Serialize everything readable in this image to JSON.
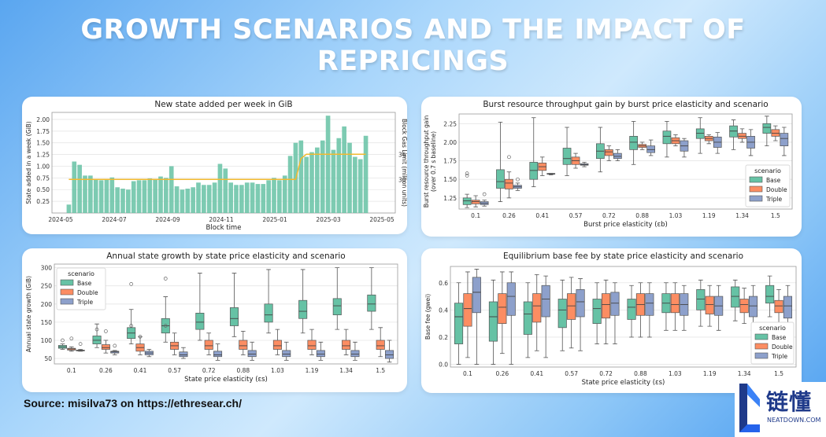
{
  "page_title": "GROWTH SCENARIOS AND THE IMPACT OF REPRICINGS",
  "source": "Source: misilva73 on https://ethresear.ch/",
  "logo": {
    "cn": "链懂",
    "en": "NEATDOWN.COM"
  },
  "colors": {
    "base": "#66c2a5",
    "double": "#fc8d62",
    "triple": "#8da0cb",
    "gaslimit": "#f2b92e"
  },
  "chart_data": [
    {
      "type": "bar",
      "title": "New state added per week in GiB",
      "xlabel": "Block time",
      "ylabel": "State added in a week (GiB)",
      "ylabel2": "Block Gas Limit (million units)",
      "ylim": [
        0,
        2.15
      ],
      "yticks": [
        "0.25",
        "0.50",
        "0.75",
        "1.00",
        "1.25",
        "1.50",
        "1.75",
        "2.00"
      ],
      "ytick_values": [
        0.25,
        0.5,
        0.75,
        1.0,
        1.25,
        1.5,
        1.75,
        2.0
      ],
      "y2ticks": [
        "30",
        "36"
      ],
      "y2tick_values": [
        30,
        36
      ],
      "y2lim": [
        22,
        46
      ],
      "xticks": [
        "2024-05",
        "2024-07",
        "2024-09",
        "2024-11",
        "2025-01",
        "2025-03",
        "2025-05"
      ],
      "values": [
        0.18,
        1.1,
        1.03,
        0.8,
        0.8,
        0.72,
        0.7,
        0.72,
        0.76,
        0.55,
        0.52,
        0.5,
        0.68,
        0.7,
        0.7,
        0.74,
        0.72,
        0.78,
        0.75,
        1.0,
        0.57,
        0.5,
        0.52,
        0.55,
        0.65,
        0.6,
        0.6,
        0.65,
        1.05,
        0.95,
        0.65,
        0.6,
        0.6,
        0.65,
        0.65,
        0.62,
        0.62,
        0.7,
        0.75,
        0.7,
        0.8,
        1.22,
        1.5,
        1.55,
        1.2,
        1.3,
        1.4,
        1.55,
        2.08,
        1.35,
        1.6,
        1.85,
        1.5,
        1.2,
        1.15,
        1.65
      ],
      "gas_limit": [
        30,
        30,
        30,
        30,
        30,
        30,
        30,
        30,
        30,
        30,
        30,
        30,
        30,
        30,
        30,
        30,
        30,
        30,
        30,
        30,
        30,
        30,
        30,
        30,
        30,
        30,
        30,
        30,
        30,
        30,
        30,
        30,
        30,
        30,
        30,
        30,
        30,
        30,
        30,
        30,
        30,
        30,
        30,
        35,
        36,
        36,
        36,
        36,
        36,
        36,
        36,
        36,
        36,
        36,
        36,
        36
      ]
    },
    {
      "type": "boxplot",
      "title": "Burst resource throughput gain by burst price elasticity and scenario",
      "xlabel": "Burst price elasticity (εb)",
      "ylabel": "Burst resource throughput gain",
      "ylabel_line2": "(over 0.7 s baseline)",
      "ylim": [
        1.1,
        2.38
      ],
      "yticks": [
        "1.25",
        "1.50",
        "1.75",
        "2.00",
        "2.25"
      ],
      "ytick_values": [
        1.25,
        1.5,
        1.75,
        2.0,
        2.25
      ],
      "categories": [
        "0.1",
        "0.26",
        "0.41",
        "0.57",
        "0.72",
        "0.88",
        "1.03",
        "1.19",
        "1.34",
        "1.5"
      ],
      "legend_title": "scenario",
      "legend": [
        "Base",
        "Double",
        "Triple"
      ],
      "series": [
        {
          "name": "Base",
          "boxes": [
            [
              1.12,
              1.16,
              1.21,
              1.25,
              1.3
            ],
            [
              1.2,
              1.38,
              1.47,
              1.63,
              2.27
            ],
            [
              1.4,
              1.5,
              1.62,
              1.73,
              2.33
            ],
            [
              1.55,
              1.7,
              1.78,
              1.92,
              2.2
            ],
            [
              1.6,
              1.78,
              1.88,
              1.98,
              2.2
            ],
            [
              1.7,
              1.9,
              2.0,
              2.08,
              2.28
            ],
            [
              1.8,
              1.98,
              2.08,
              2.15,
              2.28
            ],
            [
              1.85,
              2.05,
              2.12,
              2.18,
              2.33
            ],
            [
              1.9,
              2.07,
              2.15,
              2.22,
              2.3
            ],
            [
              1.95,
              2.12,
              2.2,
              2.25,
              2.35
            ]
          ],
          "outliers": [
            [
              1.55,
              1.58
            ],
            [],
            [],
            [],
            [],
            [],
            [],
            [],
            [],
            []
          ]
        },
        {
          "name": "Double",
          "boxes": [
            [
              1.13,
              1.17,
              1.2,
              1.22,
              1.28
            ],
            [
              1.25,
              1.37,
              1.45,
              1.5,
              1.6
            ],
            [
              1.55,
              1.62,
              1.67,
              1.72,
              1.8
            ],
            [
              1.65,
              1.7,
              1.75,
              1.8,
              1.85
            ],
            [
              1.75,
              1.82,
              1.87,
              1.9,
              1.95
            ],
            [
              1.9,
              1.93,
              1.95,
              1.97,
              2.0
            ],
            [
              1.95,
              1.98,
              2.02,
              2.06,
              2.1
            ],
            [
              1.98,
              2.02,
              2.05,
              2.08,
              2.1
            ],
            [
              2.0,
              2.05,
              2.08,
              2.12,
              2.18
            ],
            [
              2.02,
              2.08,
              2.12,
              2.17,
              2.22
            ]
          ],
          "outliers": [
            [],
            [
              1.8
            ],
            [],
            [],
            [],
            [],
            [],
            [],
            [],
            []
          ]
        },
        {
          "name": "Triple",
          "boxes": [
            [
              1.14,
              1.16,
              1.18,
              1.2,
              1.22
            ],
            [
              1.35,
              1.38,
              1.4,
              1.42,
              1.45
            ],
            [
              1.56,
              1.57,
              1.57,
              1.58,
              1.58
            ],
            [
              1.67,
              1.69,
              1.7,
              1.71,
              1.73
            ],
            [
              1.75,
              1.78,
              1.81,
              1.85,
              1.9
            ],
            [
              1.82,
              1.86,
              1.9,
              1.95,
              2.03
            ],
            [
              1.8,
              1.88,
              1.95,
              2.02,
              2.05
            ],
            [
              1.85,
              1.93,
              2.0,
              2.07,
              2.13
            ],
            [
              1.82,
              1.92,
              2.0,
              2.08,
              2.17
            ],
            [
              1.82,
              1.95,
              2.05,
              2.12,
              2.2
            ]
          ],
          "outliers": [
            [
              1.3
            ],
            [
              1.5
            ],
            [],
            [],
            [],
            [],
            [],
            [],
            [],
            []
          ]
        }
      ]
    },
    {
      "type": "boxplot",
      "title": "Annual state growth by state price elasticity and scenario",
      "xlabel": "State price elasticity (εs)",
      "ylabel": "Annual state growth (GiB)",
      "ylim": [
        35,
        310
      ],
      "yticks": [
        "50",
        "100",
        "150",
        "200",
        "250",
        "300"
      ],
      "ytick_values": [
        50,
        100,
        150,
        200,
        250,
        300
      ],
      "categories": [
        "0.1",
        "0.26",
        "0.41",
        "0.57",
        "0.72",
        "0.88",
        "1.03",
        "1.19",
        "1.34",
        "1.5"
      ],
      "legend_title": "scenario",
      "legend": [
        "Base",
        "Double",
        "Triple"
      ],
      "series": [
        {
          "name": "Base",
          "boxes": [
            [
              75,
              78,
              82,
              86,
              90
            ],
            [
              80,
              90,
              100,
              112,
              145
            ],
            [
              90,
              105,
              120,
              135,
              185
            ],
            [
              95,
              120,
              140,
              160,
              220
            ],
            [
              100,
              130,
              150,
              175,
              285
            ],
            [
              110,
              140,
              160,
              190,
              285
            ],
            [
              120,
              150,
              170,
              200,
              295
            ],
            [
              120,
              160,
              180,
              210,
              295
            ],
            [
              130,
              170,
              195,
              215,
              300
            ],
            [
              130,
              180,
              200,
              225,
              300
            ]
          ],
          "outliers": [
            [
              100
            ],
            [
              130
            ],
            [
              255,
              140
            ],
            [
              270,
              140
            ],
            [],
            [],
            [],
            [],
            [],
            []
          ]
        },
        {
          "name": "Double",
          "boxes": [
            [
              70,
              73,
              76,
              78,
              82
            ],
            [
              65,
              75,
              80,
              88,
              100
            ],
            [
              60,
              70,
              80,
              90,
              110
            ],
            [
              60,
              75,
              85,
              95,
              120
            ],
            [
              60,
              75,
              85,
              100,
              120
            ],
            [
              60,
              75,
              85,
              100,
              125
            ],
            [
              60,
              75,
              85,
              100,
              130
            ],
            [
              60,
              75,
              85,
              100,
              130
            ],
            [
              60,
              75,
              85,
              100,
              130
            ],
            [
              55,
              75,
              85,
              100,
              135
            ]
          ],
          "outliers": [
            [
              105
            ],
            [
              125
            ],
            [
              110
            ],
            [],
            [],
            [],
            [],
            [],
            [],
            []
          ]
        },
        {
          "name": "Triple",
          "boxes": [
            [
              70,
              71,
              72,
              73,
              75
            ],
            [
              60,
              65,
              68,
              70,
              72
            ],
            [
              55,
              60,
              65,
              70,
              75
            ],
            [
              50,
              55,
              60,
              68,
              80
            ],
            [
              45,
              55,
              60,
              70,
              90
            ],
            [
              45,
              55,
              62,
              72,
              95
            ],
            [
              45,
              55,
              62,
              72,
              95
            ],
            [
              45,
              55,
              62,
              72,
              95
            ],
            [
              45,
              55,
              62,
              72,
              95
            ],
            [
              40,
              50,
              60,
              72,
              100
            ]
          ],
          "outliers": [
            [
              90
            ],
            [
              85
            ],
            [],
            [],
            [],
            [],
            [],
            [],
            [],
            []
          ]
        }
      ]
    },
    {
      "type": "boxplot",
      "title": "Equilibrium base fee by state price elasticity and scenario",
      "xlabel": "State price elasticity (εs)",
      "ylabel": "Base fee (gwei)",
      "ylim": [
        -0.02,
        0.72
      ],
      "yticks": [
        "0.0",
        "0.2",
        "0.4",
        "0.6"
      ],
      "ytick_values": [
        0.0,
        0.2,
        0.4,
        0.6
      ],
      "categories": [
        "0.1",
        "0.26",
        "0.41",
        "0.57",
        "0.72",
        "0.88",
        "1.03",
        "1.19",
        "1.34",
        "1.5"
      ],
      "legend_title": "scenario",
      "legend": [
        "Base",
        "Double",
        "Triple"
      ],
      "series": [
        {
          "name": "Base",
          "boxes": [
            [
              0.0,
              0.15,
              0.35,
              0.45,
              0.6
            ],
            [
              0.0,
              0.17,
              0.35,
              0.46,
              0.62
            ],
            [
              0.05,
              0.22,
              0.37,
              0.46,
              0.6
            ],
            [
              0.1,
              0.27,
              0.4,
              0.48,
              0.62
            ],
            [
              0.15,
              0.3,
              0.41,
              0.48,
              0.6
            ],
            [
              0.2,
              0.33,
              0.42,
              0.48,
              0.58
            ],
            [
              0.25,
              0.38,
              0.45,
              0.52,
              0.6
            ],
            [
              0.28,
              0.4,
              0.48,
              0.55,
              0.62
            ],
            [
              0.32,
              0.42,
              0.5,
              0.57,
              0.62
            ],
            [
              0.35,
              0.45,
              0.5,
              0.58,
              0.65
            ]
          ],
          "outliers": [
            [],
            [],
            [],
            [],
            [],
            [],
            [],
            [],
            [],
            []
          ]
        },
        {
          "name": "Double",
          "boxes": [
            [
              0.05,
              0.28,
              0.41,
              0.52,
              0.68
            ],
            [
              0.08,
              0.3,
              0.42,
              0.52,
              0.68
            ],
            [
              0.1,
              0.31,
              0.43,
              0.52,
              0.66
            ],
            [
              0.12,
              0.33,
              0.43,
              0.52,
              0.64
            ],
            [
              0.15,
              0.34,
              0.44,
              0.52,
              0.62
            ],
            [
              0.2,
              0.36,
              0.44,
              0.52,
              0.6
            ],
            [
              0.25,
              0.38,
              0.44,
              0.52,
              0.6
            ],
            [
              0.28,
              0.37,
              0.44,
              0.5,
              0.58
            ],
            [
              0.3,
              0.38,
              0.44,
              0.48,
              0.56
            ],
            [
              0.3,
              0.38,
              0.43,
              0.47,
              0.55
            ]
          ],
          "outliers": [
            [],
            [],
            [],
            [],
            [],
            [],
            [],
            [],
            [],
            []
          ]
        },
        {
          "name": "Triple",
          "boxes": [
            [
              0.0,
              0.38,
              0.53,
              0.64,
              0.7
            ],
            [
              0.0,
              0.36,
              0.5,
              0.6,
              0.68
            ],
            [
              0.05,
              0.35,
              0.48,
              0.58,
              0.65
            ],
            [
              0.1,
              0.35,
              0.46,
              0.55,
              0.63
            ],
            [
              0.15,
              0.36,
              0.45,
              0.53,
              0.6
            ],
            [
              0.2,
              0.36,
              0.45,
              0.52,
              0.6
            ],
            [
              0.25,
              0.36,
              0.44,
              0.52,
              0.58
            ],
            [
              0.25,
              0.36,
              0.43,
              0.5,
              0.58
            ],
            [
              0.25,
              0.35,
              0.43,
              0.5,
              0.58
            ],
            [
              0.25,
              0.34,
              0.43,
              0.5,
              0.58
            ]
          ],
          "outliers": [
            [],
            [],
            [],
            [],
            [],
            [],
            [],
            [],
            [],
            []
          ]
        }
      ]
    }
  ]
}
